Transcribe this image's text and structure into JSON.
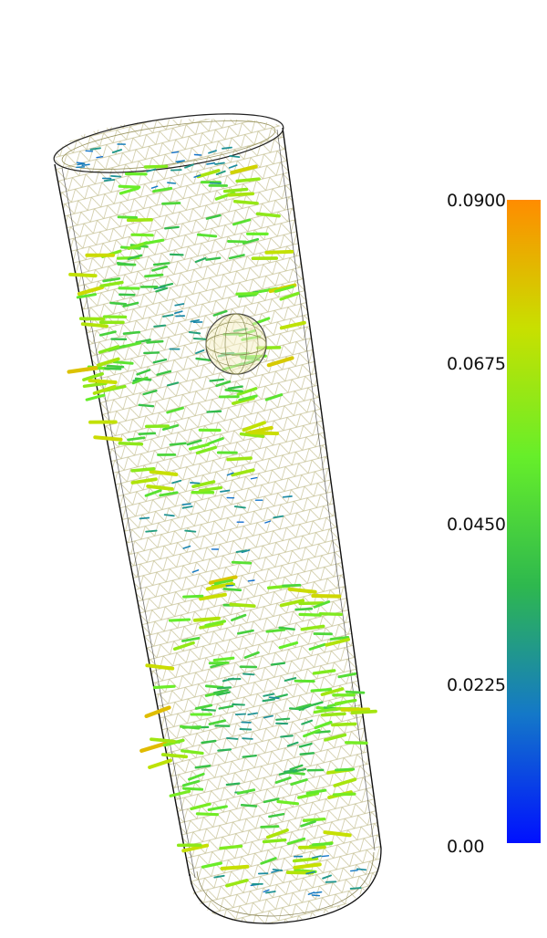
{
  "colorbar": {
    "labels": [
      "0.0900",
      "0.0675",
      "0.0450",
      "0.0225",
      "0.00"
    ],
    "min": 0.0,
    "max": 0.09,
    "colors": [
      "#0010ff",
      "#1478c8",
      "#2eb84e",
      "#66ee2a",
      "#c8e000",
      "#ff8c00"
    ]
  },
  "scene": {
    "background": "#ffffff",
    "mesh_color": "#a8a26a",
    "outline_color": "#111111",
    "sphere_color": "#8a8a50"
  }
}
